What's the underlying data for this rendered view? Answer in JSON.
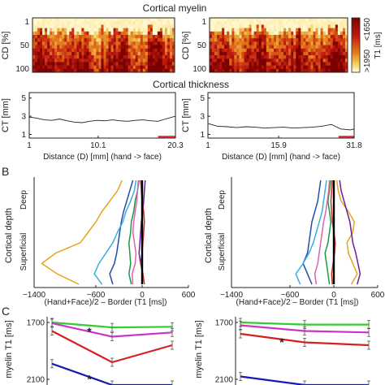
{
  "colors": {
    "heat_low": "#fffbcc",
    "heat_mid": "#e08a1e",
    "heat_high": "#a50a0a",
    "red_bar": "#e8202a"
  },
  "panel_labels": [
    "B",
    "C"
  ],
  "chart_data": [
    {
      "type": "heatmap",
      "title": "Cortical myelin",
      "ylabel": "CD [%]",
      "yticks": [
        "1",
        "50",
        "100"
      ],
      "colorbar": {
        "label": "T1 [ms]",
        "ticks": [
          ">1950",
          "<1650"
        ],
        "range": [
          1650,
          1950
        ]
      },
      "panels": [
        "left",
        "right"
      ],
      "pattern": "superficial depth (CD 1–30%) mostly pale; deeper depth dark red with column-wise variation"
    },
    {
      "type": "line",
      "title": "Cortical thickness",
      "ylabel": "CT [mm]",
      "yticks": [
        "1",
        "3",
        "5"
      ],
      "ylim": [
        0.6,
        5.6
      ],
      "subplots": [
        {
          "xlabel": "Distance (D) [mm] (hand -> face)",
          "xticks": [
            "1",
            "10.1",
            "20.3"
          ],
          "xlim": [
            1,
            20.3
          ],
          "x": [
            1,
            2,
            3,
            4,
            5,
            6,
            7,
            8,
            9,
            10,
            11,
            12,
            13,
            14,
            15,
            16,
            17,
            18,
            19,
            20.3
          ],
          "y": [
            2.9,
            2.8,
            2.6,
            2.55,
            2.7,
            2.5,
            2.35,
            2.3,
            2.45,
            2.55,
            2.5,
            2.6,
            2.5,
            2.45,
            2.55,
            2.6,
            2.5,
            2.45,
            2.7,
            3.0
          ],
          "highlight": [
            18.0,
            20.3
          ]
        },
        {
          "xlabel": "Distance (D) [mm] (hand -> face)",
          "xticks": [
            "1",
            "15.9",
            "31.8"
          ],
          "xlim": [
            1,
            31.8
          ],
          "x": [
            1,
            3,
            5,
            7,
            9,
            11,
            13,
            15,
            17,
            19,
            21,
            23,
            25,
            27,
            29,
            31,
            31.8
          ],
          "y": [
            2.2,
            1.9,
            1.85,
            1.75,
            1.85,
            1.8,
            1.7,
            1.75,
            1.8,
            1.7,
            1.75,
            1.8,
            1.9,
            2.1,
            1.6,
            1.5,
            1.6
          ],
          "highlight": [
            28.5,
            31.8
          ]
        }
      ]
    },
    {
      "type": "line",
      "panel": "B",
      "xlabel": "(Hand+Face)/2 – Border (T1 [ms])",
      "ylabel": "Cortical depth",
      "ytick_labels": [
        "Deep",
        "Superficial"
      ],
      "xticks": [
        -1400,
        -600,
        0,
        600
      ],
      "xlim": [
        -1400,
        600
      ],
      "depth": [
        0,
        0.1,
        0.2,
        0.3,
        0.4,
        0.5,
        0.6,
        0.7,
        0.8,
        0.9,
        1.0
      ],
      "subplots": [
        {
          "series": [
            {
              "color": "#e6a51e",
              "values": [
                -260,
                -320,
                -420,
                -520,
                -600,
                -700,
                -800,
                -1120,
                -1300,
                -1100,
                -820
              ]
            },
            {
              "color": "#1f4ea8",
              "values": [
                -120,
                -160,
                -200,
                -240,
                -270,
                -290,
                -310,
                -330,
                -360,
                -420,
                -380
              ]
            },
            {
              "color": "#3aaee0",
              "values": [
                -80,
                -100,
                -150,
                -210,
                -250,
                -320,
                -380,
                -470,
                -560,
                -620,
                -520
              ]
            },
            {
              "color": "#1c9a3c",
              "values": [
                -40,
                -60,
                -90,
                -110,
                -140,
                -150,
                -170,
                -160,
                -150,
                -170,
                -140
              ]
            },
            {
              "color": "#e060b0",
              "values": [
                -50,
                -60,
                -70,
                -90,
                -110,
                -120,
                -100,
                -80,
                -90,
                -130,
                -120
              ]
            },
            {
              "color": "#6a1e9a",
              "values": [
                40,
                30,
                20,
                10,
                -10,
                -20,
                -30,
                -40,
                -20,
                10,
                0
              ]
            },
            {
              "color": "#c8302a",
              "values": [
                -20,
                -10,
                0,
                20,
                30,
                20,
                10,
                0,
                -20,
                10,
                30
              ]
            },
            {
              "color": "#000000",
              "values": [
                0,
                0,
                0,
                0,
                0,
                0,
                0,
                0,
                0,
                0,
                0
              ]
            }
          ]
        },
        {
          "series": [
            {
              "color": "#e6a51e",
              "values": [
                40,
                60,
                100,
                200,
                280,
                260,
                180,
                200,
                260,
                320,
                240
              ]
            },
            {
              "color": "#1f4ea8",
              "values": [
                -180,
                -200,
                -220,
                -260,
                -300,
                -320,
                -340,
                -360,
                -420,
                -360,
                -300
              ]
            },
            {
              "color": "#3aaee0",
              "values": [
                -100,
                -120,
                -140,
                -160,
                -200,
                -240,
                -280,
                -340,
                -420,
                -520,
                -460
              ]
            },
            {
              "color": "#1c9a3c",
              "values": [
                -40,
                -60,
                -80,
                -60,
                -40,
                -60,
                -80,
                -120,
                -100,
                -80,
                -60
              ]
            },
            {
              "color": "#e060b0",
              "values": [
                -60,
                -70,
                -90,
                -110,
                -140,
                -160,
                -180,
                -200,
                -220,
                -260,
                -240
              ]
            },
            {
              "color": "#6a1e9a",
              "values": [
                80,
                100,
                140,
                180,
                220,
                240,
                260,
                300,
                330,
                360,
                320
              ]
            },
            {
              "color": "#c8302a",
              "values": [
                -20,
                -30,
                -40,
                -30,
                -20,
                0,
                20,
                10,
                -10,
                -30,
                -20
              ]
            },
            {
              "color": "#000000",
              "values": [
                0,
                0,
                0,
                0,
                0,
                0,
                0,
                0,
                0,
                0,
                0
              ]
            }
          ]
        }
      ]
    },
    {
      "type": "line",
      "panel": "C",
      "ylabel_left": "myelin T1 [ms]",
      "ylabel_right": "myelin T1 [ms]",
      "yticks": [
        1700,
        2100
      ],
      "ylim": [
        1660,
        2140
      ],
      "note": "y axis inverted (1700 at top)",
      "subplots": [
        {
          "categories": [
            "1",
            "2",
            "3"
          ],
          "series": [
            {
              "color": "#33cc33",
              "values": [
                1700,
                1735,
                1730
              ]
            },
            {
              "color": "#cc33cc",
              "values": [
                1705,
                1800,
                1770
              ]
            },
            {
              "color": "#d62020",
              "values": [
                1760,
                1980,
                1860
              ]
            },
            {
              "color": "#1a1ab0",
              "values": [
                1990,
                2140,
                2140
              ]
            }
          ],
          "asterisks": [
            {
              "category": "2",
              "value": 1745
            },
            {
              "category": "2",
              "value": 2080
            }
          ]
        },
        {
          "categories": [
            "1",
            "2",
            "3"
          ],
          "series": [
            {
              "color": "#33cc33",
              "values": [
                1700,
                1715,
                1715
              ]
            },
            {
              "color": "#cc33cc",
              "values": [
                1720,
                1760,
                1770
              ]
            },
            {
              "color": "#d62020",
              "values": [
                1780,
                1840,
                1860
              ]
            },
            {
              "color": "#1a1ab0",
              "values": [
                2080,
                2140,
                2140
              ]
            }
          ],
          "asterisks": [
            {
              "category": "2",
              "value": 1820
            }
          ]
        }
      ]
    }
  ]
}
